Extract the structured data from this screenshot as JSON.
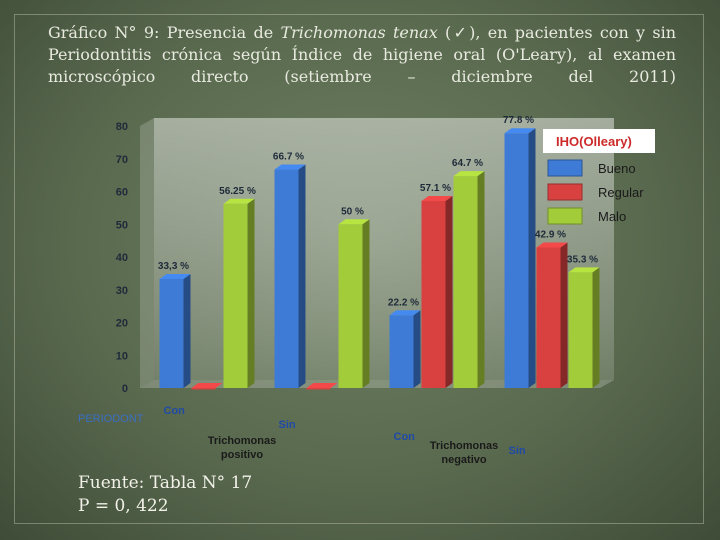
{
  "slide": {
    "title_part1": "Gráfico N° 9: Presencia de ",
    "title_italic": "Trichomonas tenax",
    "title_part2": " (✓), en pacientes con y sin Periodontitis crónica según Índice de higiene oral (O'Leary), al examen microscópico directo (setiembre – diciembre del 2011)",
    "source": "Fuente: Tabla N° 17",
    "p_value": "P = 0, 422"
  },
  "chart_data": {
    "type": "bar",
    "title": "",
    "xlabel": "",
    "ylabel": "",
    "ylim": [
      0,
      80
    ],
    "yticks": [
      0,
      10,
      20,
      30,
      40,
      50,
      60,
      70,
      80
    ],
    "legend_title": "IHO(Olleary)",
    "legend_position": "top-right",
    "corner_label": "PERIODONT",
    "groups": [
      {
        "label": "Trichomonas positivo",
        "subgroups": [
          "Con",
          "Sin"
        ]
      },
      {
        "label": "Trichomonas negativo",
        "subgroups": [
          "Con",
          "Sin"
        ]
      }
    ],
    "categories": [
      "Con",
      "Sin",
      "Con",
      "Sin"
    ],
    "series": [
      {
        "name": "Bueno",
        "color": "#3d7bd6",
        "values": [
          33.3,
          66.7,
          22.2,
          77.8
        ],
        "labels": [
          "33,3 %",
          "66.7 %",
          "22.2 %",
          "77.8 %"
        ]
      },
      {
        "name": "Regular",
        "color": "#d94141",
        "values": [
          0,
          0,
          57.1,
          42.9
        ],
        "labels": [
          "",
          "",
          "57.1 %",
          "42.9 %"
        ]
      },
      {
        "name": "Malo",
        "color": "#a3cc3a",
        "values": [
          56.25,
          50,
          64.7,
          35.3
        ],
        "labels": [
          "56.25 %",
          "50 %",
          "64.7 %",
          "35.3 %"
        ]
      }
    ]
  }
}
